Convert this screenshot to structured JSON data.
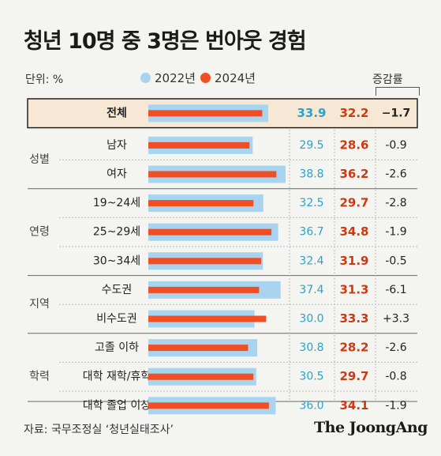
{
  "title": "청년 10명 중 3명은 번아웃 경험",
  "unit": "단위: %",
  "legend": {
    "s2022": "2022년",
    "s2024": "2024년"
  },
  "rate_header": "증감률",
  "source": "자료: 국무조정실 ‘청년실태조사’",
  "logo": "The JoongAng",
  "colors": {
    "s2022": "#a8d4f0",
    "s2024": "#f04e23",
    "v2022": "#2ba3c9",
    "v2024": "#cc3a14",
    "total_bg": "#f6e8d4",
    "total_border": "#222"
  },
  "chart_data": {
    "type": "bar",
    "title": "청년 10명 중 3명은 번아웃 경험",
    "categories": [
      "전체",
      "남자",
      "여자",
      "19~24세",
      "25~29세",
      "30~34세",
      "수도권",
      "비수도권",
      "고졸 이하",
      "대학 재학/휴학",
      "대학 졸업 이상"
    ],
    "groups": [
      {
        "label": "",
        "count": 1
      },
      {
        "label": "성별",
        "count": 2
      },
      {
        "label": "연령",
        "count": 3
      },
      {
        "label": "지역",
        "count": 2
      },
      {
        "label": "학력",
        "count": 3
      }
    ],
    "series": [
      {
        "name": "2022년",
        "values": [
          33.9,
          29.5,
          38.8,
          32.5,
          36.7,
          32.4,
          37.4,
          30.0,
          30.8,
          30.5,
          36.0
        ]
      },
      {
        "name": "2024년",
        "values": [
          32.2,
          28.6,
          36.2,
          29.7,
          34.8,
          31.9,
          31.3,
          33.3,
          28.2,
          29.7,
          34.1
        ]
      }
    ],
    "labels_2022": [
      "33.9",
      "29.5",
      "38.8",
      "32.5",
      "36.7",
      "32.4",
      "37.4",
      "30.0",
      "30.8",
      "30.5",
      "36.0"
    ],
    "labels_2024": [
      "32.2",
      "28.6",
      "36.2",
      "29.7",
      "34.8",
      "31.9",
      "31.3",
      "33.3",
      "28.2",
      "29.7",
      "34.1"
    ],
    "change": [
      "−1.7",
      "-0.9",
      "-2.6",
      "-2.8",
      "-1.9",
      "-0.5",
      "-6.1",
      "+3.3",
      "-2.6",
      "-0.8",
      "-1.9"
    ],
    "ylim": [
      0,
      40
    ]
  }
}
